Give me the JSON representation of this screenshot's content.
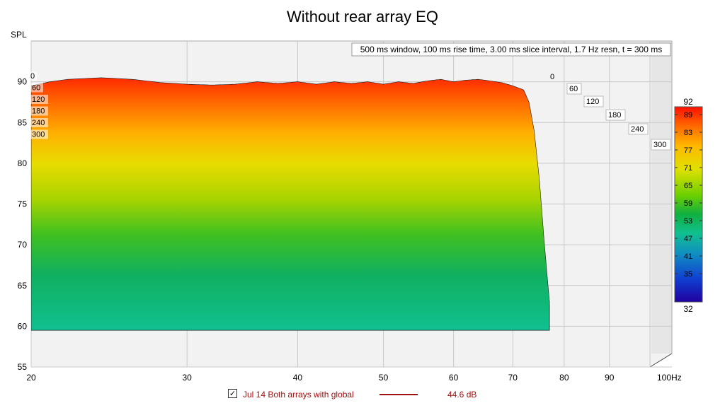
{
  "chart_data": {
    "type": "waterfall",
    "title": "Without rear array EQ",
    "ylabel": "SPL",
    "xlabel_unit": "Hz",
    "settings_text": "500 ms window, 100 ms rise time, 3.00 ms slice interval, 1.7 Hz resn, t = 300 ms",
    "x_scale": "log",
    "xlim": [
      20,
      100
    ],
    "x_ticks": [
      "20",
      "30",
      "40",
      "50",
      "60",
      "70",
      "80",
      "90",
      "100Hz"
    ],
    "x_tick_values": [
      20,
      30,
      40,
      50,
      60,
      70,
      80,
      90,
      100
    ],
    "ylim": [
      55,
      95
    ],
    "y_ticks": [
      "55",
      "60",
      "65",
      "70",
      "75",
      "80",
      "85",
      "90"
    ],
    "y_tick_values": [
      55,
      60,
      65,
      70,
      75,
      80,
      85,
      90
    ],
    "time_axis_unit": "ms",
    "time_ticks_left": [
      "0",
      "60",
      "120",
      "180",
      "240",
      "300"
    ],
    "time_ticks_right": [
      "0",
      "60",
      "120",
      "180",
      "240",
      "300"
    ],
    "time_tick_values": [
      0,
      60,
      120,
      180,
      240,
      300
    ],
    "colorbar": {
      "max": "92",
      "min": "32",
      "labels": [
        "89",
        "83",
        "77",
        "71",
        "65",
        "59",
        "53",
        "47",
        "41",
        "35"
      ],
      "colors": [
        "#ff2000",
        "#ff7a00",
        "#ffd000",
        "#e0e000",
        "#70d000",
        "#10b040",
        "#10c090",
        "#1090c0",
        "#1040d0",
        "#2000a0"
      ]
    },
    "series": [
      {
        "name": "Jul 14 Both arrays with global",
        "offset": "44.6 dB",
        "color": "#a01010",
        "visible": true,
        "front_slice_db": [
          [
            20,
            89.5
          ],
          [
            21,
            90.0
          ],
          [
            22,
            90.3
          ],
          [
            23,
            90.4
          ],
          [
            24,
            90.5
          ],
          [
            25,
            90.4
          ],
          [
            26,
            90.3
          ],
          [
            28,
            89.9
          ],
          [
            30,
            89.7
          ],
          [
            32,
            89.6
          ],
          [
            34,
            89.7
          ],
          [
            36,
            90.0
          ],
          [
            38,
            89.8
          ],
          [
            40,
            90.0
          ],
          [
            42,
            89.7
          ],
          [
            44,
            90.0
          ],
          [
            46,
            89.8
          ],
          [
            48,
            90.0
          ],
          [
            50,
            89.7
          ],
          [
            52,
            90.0
          ],
          [
            54,
            89.8
          ],
          [
            56,
            90.1
          ],
          [
            58,
            90.3
          ],
          [
            60,
            90.0
          ],
          [
            62,
            90.2
          ],
          [
            64,
            90.3
          ],
          [
            66,
            90.1
          ],
          [
            68,
            89.9
          ],
          [
            70,
            89.5
          ],
          [
            72,
            89.0
          ],
          [
            73,
            87.5
          ],
          [
            74,
            84.0
          ],
          [
            75,
            78.0
          ],
          [
            76,
            70.0
          ],
          [
            77,
            63.0
          ]
        ]
      }
    ]
  }
}
